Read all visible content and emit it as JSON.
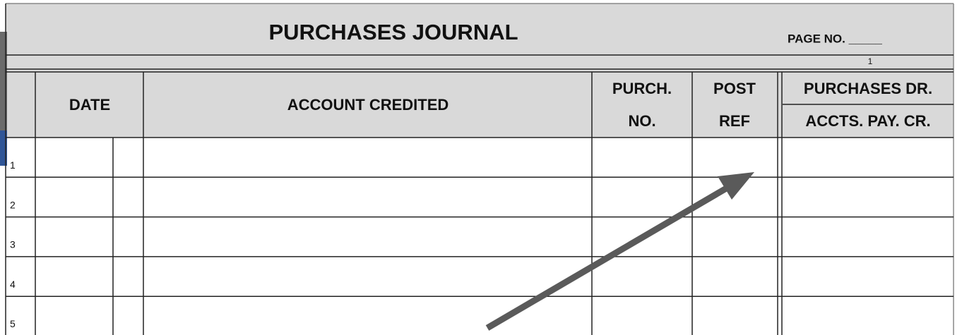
{
  "header": {
    "title": "PURCHASES JOURNAL",
    "page_label": "PAGE NO. _____",
    "page_number": "1"
  },
  "table": {
    "columns": [
      "DATE",
      "ACCOUNT CREDITED",
      "PURCH.",
      "NO.",
      "POST",
      "REF",
      "PURCHASES DR.",
      "ACCTS. PAY. CR."
    ],
    "rows": [
      "1",
      "2",
      "3",
      "4",
      "5"
    ]
  }
}
